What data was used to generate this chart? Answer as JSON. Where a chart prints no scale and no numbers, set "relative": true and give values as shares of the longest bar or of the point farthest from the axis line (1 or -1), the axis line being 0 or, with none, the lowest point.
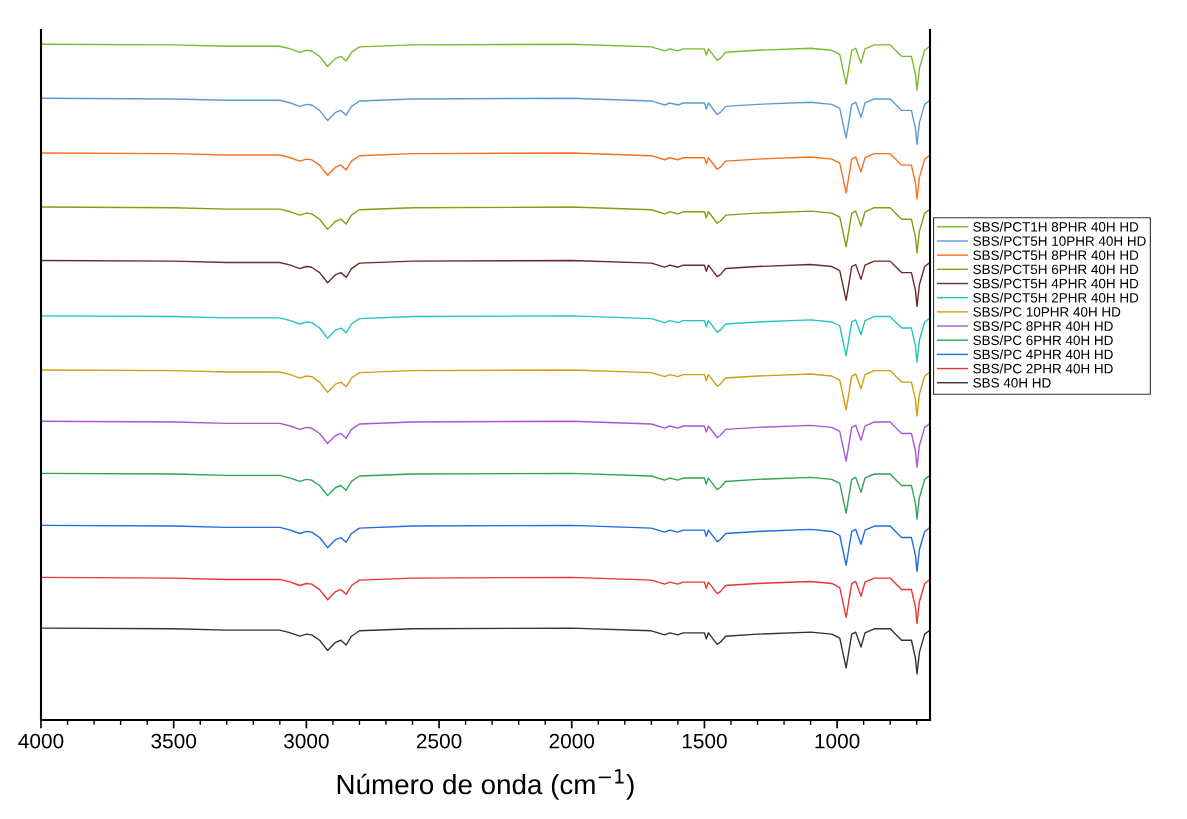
{
  "chart_data": {
    "type": "line",
    "relative": true,
    "xlabel": "Número de onda (cm$^{−1}$)",
    "legend": "right",
    "x": [
      4000,
      3500,
      3300,
      3100,
      3060,
      3025,
      3000,
      2980,
      2950,
      2920,
      2890,
      2870,
      2850,
      2830,
      2800,
      2600,
      2000,
      1700,
      1650,
      1630,
      1600,
      1580,
      1500,
      1493,
      1485,
      1452,
      1440,
      1420,
      1300,
      1100,
      1020,
      990,
      966,
      945,
      930,
      910,
      895,
      860,
      800,
      780,
      757,
      720,
      705,
      699,
      690,
      670,
      650
    ],
    "xlim": [
      4000,
      650
    ],
    "xticks": [
      4000,
      {
        "value": 3900,
        "label": null
      },
      {
        "value": 3800,
        "label": null
      },
      {
        "value": 3700,
        "label": null
      },
      {
        "value": 3600,
        "label": null
      },
      3500,
      {
        "value": 3400,
        "label": null
      },
      {
        "value": 3300,
        "label": null
      },
      {
        "value": 3200,
        "label": null
      },
      {
        "value": 3100,
        "label": null
      },
      3000,
      {
        "value": 2900,
        "label": null
      },
      {
        "value": 2800,
        "label": null
      },
      {
        "value": 2700,
        "label": null
      },
      {
        "value": 2600,
        "label": null
      },
      2500,
      {
        "value": 2400,
        "label": null
      },
      {
        "value": 2300,
        "label": null
      },
      {
        "value": 2200,
        "label": null
      },
      {
        "value": 2100,
        "label": null
      },
      2000,
      {
        "value": 1900,
        "label": null
      },
      {
        "value": 1800,
        "label": null
      },
      {
        "value": 1700,
        "label": null
      },
      {
        "value": 1600,
        "label": null
      },
      1500,
      {
        "value": 1400,
        "label": null
      },
      {
        "value": 1300,
        "label": null
      },
      {
        "value": 1200,
        "label": null
      },
      {
        "value": 1100,
        "label": null
      },
      1000,
      {
        "value": 900,
        "label": null
      },
      {
        "value": 800,
        "label": null
      },
      {
        "value": 700,
        "label": null
      }
    ],
    "series": [
      {
        "name": "SBS/PCT1H 8PHR 40H HD",
        "color": "#7cb82f",
        "values": [
          1,
          0.999,
          0.997,
          0.997,
          0.993,
          0.988,
          0.991,
          0.99,
          0.982,
          0.967,
          0.979,
          0.982,
          0.975,
          0.988,
          0.996,
          0.999,
          1,
          0.996,
          0.99,
          0.993,
          0.99,
          0.993,
          0.993,
          0.984,
          0.993,
          0.976,
          0.979,
          0.988,
          0.991,
          0.994,
          0.991,
          0.985,
          0.941,
          0.991,
          0.994,
          0.972,
          0.993,
          0.999,
          0.999,
          0.991,
          0.982,
          0.982,
          0.956,
          0.932,
          0.964,
          0.991,
          0.997
        ]
      },
      {
        "name": "SBS/PCT5H 10PHR 40H HD",
        "color": "#5b9bd5",
        "values": [
          0.92,
          0.919,
          0.917,
          0.917,
          0.913,
          0.908,
          0.911,
          0.91,
          0.902,
          0.887,
          0.899,
          0.902,
          0.895,
          0.908,
          0.916,
          0.919,
          0.92,
          0.916,
          0.91,
          0.913,
          0.91,
          0.913,
          0.913,
          0.904,
          0.913,
          0.896,
          0.899,
          0.908,
          0.911,
          0.914,
          0.911,
          0.905,
          0.861,
          0.911,
          0.914,
          0.892,
          0.913,
          0.919,
          0.919,
          0.911,
          0.902,
          0.902,
          0.876,
          0.852,
          0.884,
          0.911,
          0.917
        ]
      },
      {
        "name": "SBS/PCT5H 8PHR 40H HD",
        "color": "#f7711e",
        "values": [
          0.839,
          0.838,
          0.836,
          0.836,
          0.832,
          0.827,
          0.83,
          0.829,
          0.821,
          0.806,
          0.818,
          0.821,
          0.814,
          0.827,
          0.835,
          0.838,
          0.839,
          0.835,
          0.829,
          0.832,
          0.829,
          0.832,
          0.832,
          0.823,
          0.832,
          0.815,
          0.818,
          0.827,
          0.83,
          0.833,
          0.83,
          0.824,
          0.78,
          0.83,
          0.833,
          0.811,
          0.832,
          0.838,
          0.838,
          0.83,
          0.821,
          0.821,
          0.795,
          0.771,
          0.803,
          0.83,
          0.836
        ]
      },
      {
        "name": "SBS/PCT5H 6PHR 40H HD",
        "color": "#8a9a12",
        "values": [
          0.759,
          0.758,
          0.756,
          0.756,
          0.752,
          0.747,
          0.75,
          0.749,
          0.741,
          0.726,
          0.738,
          0.741,
          0.734,
          0.747,
          0.755,
          0.758,
          0.759,
          0.755,
          0.749,
          0.752,
          0.749,
          0.752,
          0.752,
          0.743,
          0.752,
          0.735,
          0.738,
          0.747,
          0.75,
          0.753,
          0.75,
          0.744,
          0.7,
          0.75,
          0.753,
          0.731,
          0.752,
          0.758,
          0.758,
          0.75,
          0.741,
          0.741,
          0.715,
          0.691,
          0.723,
          0.75,
          0.756
        ]
      },
      {
        "name": "SBS/PCT5H 4PHR 40H HD",
        "color": "#6b2a2a",
        "values": [
          0.68,
          0.679,
          0.677,
          0.677,
          0.673,
          0.668,
          0.671,
          0.67,
          0.662,
          0.647,
          0.659,
          0.662,
          0.655,
          0.668,
          0.676,
          0.679,
          0.68,
          0.676,
          0.67,
          0.673,
          0.67,
          0.673,
          0.673,
          0.664,
          0.673,
          0.656,
          0.659,
          0.668,
          0.671,
          0.674,
          0.671,
          0.665,
          0.621,
          0.671,
          0.674,
          0.652,
          0.673,
          0.679,
          0.679,
          0.671,
          0.662,
          0.662,
          0.636,
          0.612,
          0.644,
          0.671,
          0.677
        ]
      },
      {
        "name": "SBS/PCT5H 2PHR 40H HD",
        "color": "#22c5c5",
        "values": [
          0.598,
          0.597,
          0.595,
          0.595,
          0.591,
          0.586,
          0.589,
          0.588,
          0.58,
          0.565,
          0.577,
          0.58,
          0.573,
          0.586,
          0.594,
          0.597,
          0.598,
          0.594,
          0.588,
          0.591,
          0.588,
          0.591,
          0.591,
          0.582,
          0.591,
          0.574,
          0.577,
          0.586,
          0.589,
          0.592,
          0.589,
          0.583,
          0.539,
          0.589,
          0.592,
          0.57,
          0.591,
          0.597,
          0.597,
          0.589,
          0.58,
          0.58,
          0.554,
          0.53,
          0.562,
          0.589,
          0.595
        ]
      },
      {
        "name": "SBS/PC 10PHR 40H HD",
        "color": "#d39d14",
        "values": [
          0.518,
          0.517,
          0.515,
          0.515,
          0.511,
          0.506,
          0.509,
          0.508,
          0.5,
          0.485,
          0.497,
          0.5,
          0.493,
          0.506,
          0.514,
          0.517,
          0.518,
          0.514,
          0.508,
          0.511,
          0.508,
          0.511,
          0.511,
          0.502,
          0.511,
          0.494,
          0.497,
          0.506,
          0.509,
          0.512,
          0.509,
          0.503,
          0.459,
          0.509,
          0.512,
          0.49,
          0.511,
          0.517,
          0.517,
          0.509,
          0.5,
          0.5,
          0.474,
          0.45,
          0.482,
          0.509,
          0.515
        ]
      },
      {
        "name": "SBS/PC 8PHR 40H HD",
        "color": "#a855d8",
        "values": [
          0.442,
          0.441,
          0.439,
          0.439,
          0.435,
          0.43,
          0.433,
          0.432,
          0.424,
          0.409,
          0.421,
          0.424,
          0.417,
          0.43,
          0.438,
          0.441,
          0.442,
          0.438,
          0.432,
          0.435,
          0.432,
          0.435,
          0.435,
          0.426,
          0.435,
          0.418,
          0.421,
          0.43,
          0.433,
          0.436,
          0.433,
          0.427,
          0.383,
          0.433,
          0.436,
          0.414,
          0.435,
          0.441,
          0.441,
          0.433,
          0.424,
          0.424,
          0.398,
          0.374,
          0.406,
          0.433,
          0.439
        ]
      },
      {
        "name": "SBS/PC 6PHR 40H HD",
        "color": "#2fa456",
        "values": [
          0.365,
          0.364,
          0.362,
          0.362,
          0.358,
          0.353,
          0.356,
          0.355,
          0.347,
          0.332,
          0.344,
          0.347,
          0.34,
          0.353,
          0.361,
          0.364,
          0.365,
          0.361,
          0.355,
          0.358,
          0.355,
          0.358,
          0.358,
          0.349,
          0.358,
          0.341,
          0.344,
          0.353,
          0.356,
          0.359,
          0.356,
          0.35,
          0.306,
          0.356,
          0.359,
          0.337,
          0.358,
          0.364,
          0.364,
          0.356,
          0.347,
          0.347,
          0.321,
          0.297,
          0.329,
          0.356,
          0.362
        ]
      },
      {
        "name": "SBS/PC 4PHR 40H HD",
        "color": "#1f6be0",
        "values": [
          0.288,
          0.287,
          0.285,
          0.285,
          0.281,
          0.276,
          0.279,
          0.278,
          0.27,
          0.255,
          0.267,
          0.27,
          0.263,
          0.276,
          0.284,
          0.287,
          0.288,
          0.284,
          0.278,
          0.281,
          0.278,
          0.281,
          0.281,
          0.272,
          0.281,
          0.264,
          0.267,
          0.276,
          0.279,
          0.282,
          0.279,
          0.273,
          0.229,
          0.279,
          0.282,
          0.26,
          0.281,
          0.287,
          0.287,
          0.279,
          0.27,
          0.27,
          0.244,
          0.22,
          0.252,
          0.279,
          0.285
        ]
      },
      {
        "name": "SBS/PC 2PHR 40H HD",
        "color": "#ee3333",
        "values": [
          0.211,
          0.21,
          0.208,
          0.208,
          0.204,
          0.199,
          0.202,
          0.201,
          0.193,
          0.178,
          0.19,
          0.193,
          0.186,
          0.199,
          0.207,
          0.21,
          0.211,
          0.207,
          0.201,
          0.204,
          0.201,
          0.204,
          0.204,
          0.195,
          0.204,
          0.187,
          0.19,
          0.199,
          0.202,
          0.205,
          0.202,
          0.196,
          0.152,
          0.202,
          0.205,
          0.183,
          0.204,
          0.21,
          0.21,
          0.202,
          0.193,
          0.193,
          0.167,
          0.143,
          0.175,
          0.202,
          0.208
        ]
      },
      {
        "name": "SBS 40H HD",
        "color": "#333333",
        "values": [
          0.136,
          0.135,
          0.133,
          0.133,
          0.129,
          0.124,
          0.127,
          0.126,
          0.118,
          0.103,
          0.115,
          0.118,
          0.111,
          0.124,
          0.132,
          0.135,
          0.136,
          0.132,
          0.126,
          0.129,
          0.126,
          0.129,
          0.129,
          0.12,
          0.129,
          0.112,
          0.115,
          0.124,
          0.127,
          0.13,
          0.127,
          0.121,
          0.077,
          0.127,
          0.13,
          0.108,
          0.129,
          0.135,
          0.135,
          0.127,
          0.118,
          0.118,
          0.092,
          0.068,
          0.1,
          0.127,
          0.133
        ]
      }
    ]
  }
}
